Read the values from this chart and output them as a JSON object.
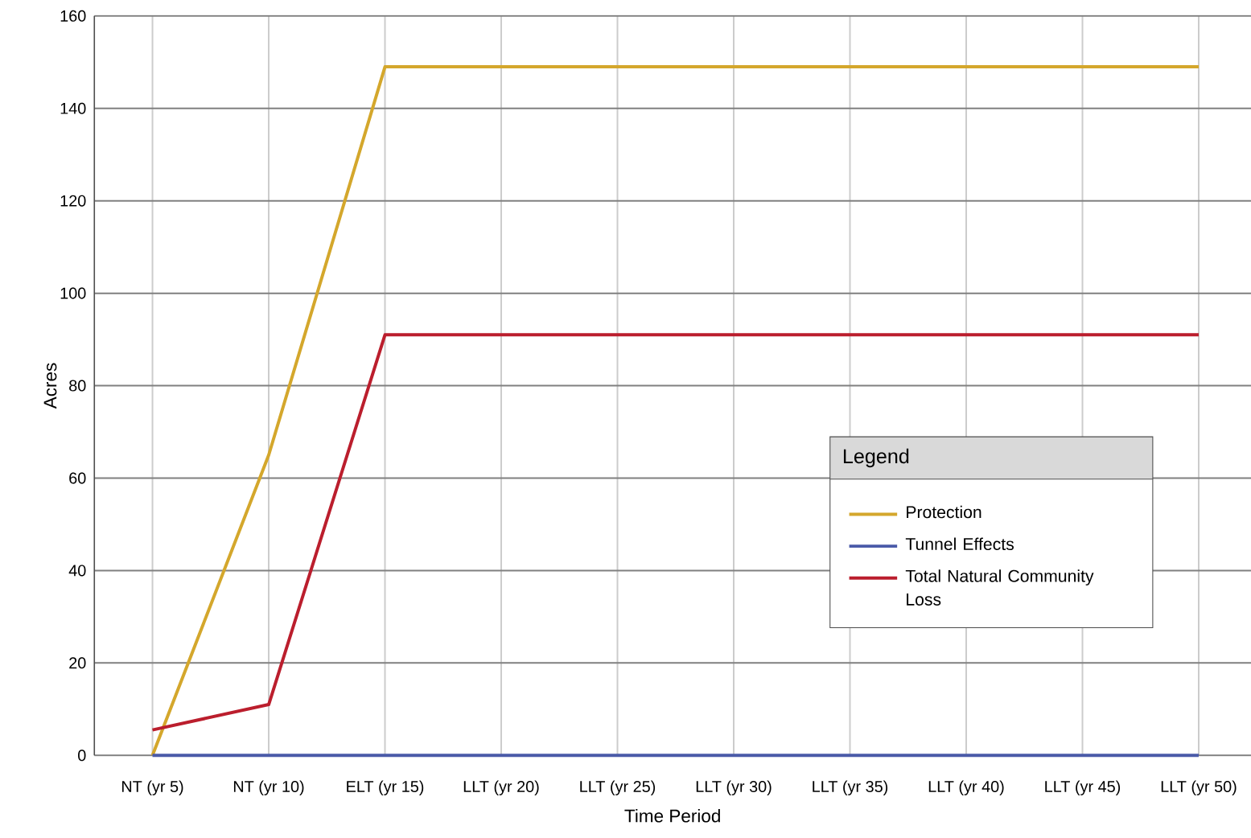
{
  "chart_data": {
    "type": "line",
    "xlabel": "Time Period",
    "ylabel": "Acres",
    "legend_title": "Legend",
    "legend": "right",
    "grid": true,
    "categories": [
      "NT (yr 5)",
      "NT (yr 10)",
      "ELT (yr 15)",
      "LLT (yr 20)",
      "LLT (yr 25)",
      "LLT (yr 30)",
      "LLT (yr 35)",
      "LLT (yr 40)",
      "LLT (yr 45)",
      "LLT (yr 50)"
    ],
    "series": [
      {
        "name": "Protection",
        "color": "#d4a72c",
        "values": [
          0,
          65,
          149,
          149,
          149,
          149,
          149,
          149,
          149,
          149
        ]
      },
      {
        "name": "Tunnel Effects",
        "color": "#4a5aa8",
        "values": [
          0,
          0,
          0,
          0,
          0,
          0,
          0,
          0,
          0,
          0
        ]
      },
      {
        "name": "Total Natural Community Loss",
        "color": "#bb1e2d",
        "values": [
          5.5,
          11,
          91,
          91,
          91,
          91,
          91,
          91,
          91,
          91
        ]
      }
    ],
    "ylim": [
      0,
      160
    ],
    "yticks": [
      0,
      20,
      40,
      60,
      80,
      100,
      120,
      140,
      160
    ]
  }
}
